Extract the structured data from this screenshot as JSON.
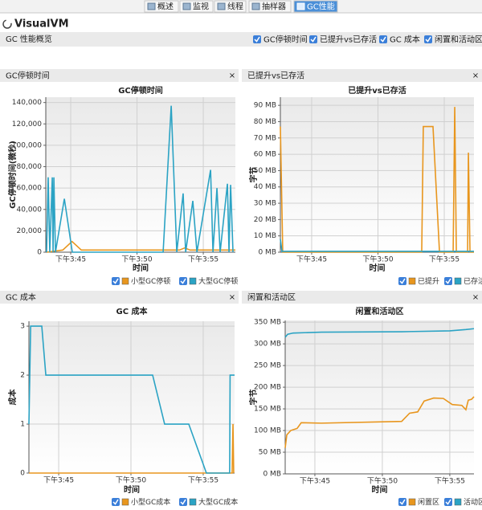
{
  "tabs": [
    "概述",
    "监视",
    "线程",
    "抽样器",
    "GC性能"
  ],
  "app_title": "VisualVM",
  "section_title": "GC 性能概览",
  "toggles": [
    "GC停顿时间",
    "已提升vs已存活",
    "GC 成本",
    "闲置和活动区"
  ],
  "chart_data": [
    {
      "type": "line",
      "panel_title": "GC停顿时间",
      "title": "GC停顿时间",
      "x_label": "时间",
      "y_label": "GC停顿时间(微秒)",
      "xlim": [
        43.12,
        57.42
      ],
      "xticks": [
        {
          "value": 45,
          "label": "下午3:45"
        },
        {
          "value": 50,
          "label": "下午3:50"
        },
        {
          "value": 55,
          "label": "下午3:55"
        }
      ],
      "ylim": [
        0,
        145000
      ],
      "yticks": [
        0,
        {
          "value": 20000,
          "label": "20,000"
        },
        {
          "value": 40000,
          "label": "40,000"
        },
        {
          "value": 60000,
          "label": "60,000"
        },
        {
          "value": 80000,
          "label": "80,000"
        },
        {
          "value": 100000,
          "label": "100,000"
        },
        {
          "value": 120000,
          "label": "120,000"
        },
        {
          "value": 140000,
          "label": "140,000"
        }
      ],
      "grid": true,
      "series": [
        {
          "name": "小型GC停顿",
          "color": "#e8961e",
          "x": [
            43.18,
            44.4,
            45.1,
            45.8,
            53.2,
            53.6,
            54.0,
            57.42
          ],
          "values": [
            0,
            2000,
            10000,
            2000,
            2000,
            4000,
            2000,
            2000
          ]
        },
        {
          "name": "大型GC停顿",
          "color": "#2ba3c4",
          "x": [
            43.18,
            43.3,
            43.42,
            43.61,
            43.67,
            43.73,
            43.85,
            44.52,
            45.12,
            51.97,
            52.58,
            53.0,
            53.48,
            53.67,
            54.21,
            54.52,
            55.55,
            55.73,
            56.03,
            56.27,
            56.82,
            56.94,
            57.06,
            57.24
          ],
          "values": [
            0,
            70000,
            0,
            70000,
            0,
            70000,
            0,
            50000,
            0,
            0,
            137000,
            0,
            55000,
            0,
            48000,
            0,
            77000,
            0,
            60000,
            0,
            64000,
            0,
            63000,
            0
          ]
        }
      ]
    },
    {
      "type": "line",
      "panel_title": "已提升vs已存活",
      "title": "已提升vs已存活",
      "x_label": "时间",
      "y_label": "字节",
      "xlim": [
        42.64,
        57.24
      ],
      "xticks": [
        {
          "value": 45,
          "label": "下午3:45"
        },
        {
          "value": 50,
          "label": "下午3:50"
        },
        {
          "value": 55,
          "label": "下午3:55"
        }
      ],
      "ylim": [
        0,
        95
      ],
      "yticks": [
        {
          "value": 0,
          "label": "0 MB"
        },
        {
          "value": 10,
          "label": "10 MB"
        },
        {
          "value": 20,
          "label": "20 MB"
        },
        {
          "value": 30,
          "label": "30 MB"
        },
        {
          "value": 40,
          "label": "40 MB"
        },
        {
          "value": 50,
          "label": "50 MB"
        },
        {
          "value": 60,
          "label": "60 MB"
        },
        {
          "value": 70,
          "label": "70 MB"
        },
        {
          "value": 80,
          "label": "80 MB"
        },
        {
          "value": 90,
          "label": "90 MB"
        }
      ],
      "grid": true,
      "series": [
        {
          "name": "已提升",
          "color": "#e8961e",
          "x": [
            42.64,
            42.82,
            53.3,
            53.42,
            54.15,
            54.64,
            55.67,
            55.79,
            55.91,
            56.76,
            56.82,
            56.94,
            57.24
          ],
          "values": [
            77,
            0,
            0,
            77,
            77,
            0,
            0,
            89,
            0,
            0,
            61,
            0,
            0
          ]
        },
        {
          "name": "已存活",
          "color": "#2ba3c4",
          "x": [
            42.64,
            42.76,
            57.24
          ],
          "values": [
            8,
            0.5,
            0.5
          ]
        }
      ]
    },
    {
      "type": "line",
      "panel_title": "GC 成本",
      "title": "GC 成本",
      "x_label": "时间",
      "y_label": "成本",
      "xlim": [
        42.94,
        57.17
      ],
      "xticks": [
        {
          "value": 45,
          "label": "下午3:45"
        },
        {
          "value": 50,
          "label": "下午3:50"
        },
        {
          "value": 55,
          "label": "下午3:55"
        }
      ],
      "ylim": [
        0,
        3.1
      ],
      "yticks": [
        0,
        1,
        2,
        3
      ],
      "grid": true,
      "series": [
        {
          "name": "小型GC成本",
          "color": "#e8961e",
          "x": [
            42.94,
            57.0,
            57.06,
            57.11
          ],
          "values": [
            0,
            0,
            1,
            0
          ]
        },
        {
          "name": "大型GC成本",
          "color": "#2ba3c4",
          "x": [
            42.94,
            43.06,
            43.83,
            44.11,
            51.5,
            52.33,
            54.0,
            55.22,
            56.83,
            56.86,
            57.17
          ],
          "values": [
            1,
            3,
            3,
            2,
            2,
            1,
            1,
            0,
            0,
            2,
            2
          ]
        }
      ]
    },
    {
      "type": "line",
      "panel_title": "闲置和活动区",
      "title": "闲置和活动区",
      "x_label": "时间",
      "y_label": "字节",
      "xlim": [
        42.8,
        56.79
      ],
      "xticks": [
        {
          "value": 45,
          "label": "下午3:45"
        },
        {
          "value": 50,
          "label": "下午3:50"
        },
        {
          "value": 55,
          "label": "下午3:55"
        }
      ],
      "ylim": [
        0,
        354
      ],
      "yticks": [
        {
          "value": 0,
          "label": "0 MB"
        },
        {
          "value": 50,
          "label": "50 MB"
        },
        {
          "value": 100,
          "label": "100 MB"
        },
        {
          "value": 150,
          "label": "150 MB"
        },
        {
          "value": 200,
          "label": "200 MB"
        },
        {
          "value": 250,
          "label": "250 MB"
        },
        {
          "value": 300,
          "label": "300 MB"
        },
        {
          "value": 350,
          "label": "350 MB"
        }
      ],
      "grid": true,
      "series": [
        {
          "name": "闲置区",
          "color": "#e8961e",
          "x": [
            42.8,
            42.92,
            43.21,
            43.69,
            43.99,
            45.48,
            51.43,
            52.02,
            52.62,
            53.1,
            53.81,
            54.52,
            55.18,
            55.89,
            56.19,
            56.37,
            56.61,
            56.79
          ],
          "values": [
            60,
            90,
            100,
            105,
            118,
            117,
            121,
            140,
            143,
            168,
            175,
            174,
            160,
            158,
            148,
            170,
            172,
            178
          ]
        },
        {
          "name": "活动区",
          "color": "#2ba3c4",
          "x": [
            42.8,
            42.98,
            43.39,
            45.48,
            51.43,
            55.0,
            56.19,
            56.79
          ],
          "values": [
            315,
            322,
            325,
            327,
            328,
            330,
            333,
            335
          ]
        }
      ]
    }
  ]
}
